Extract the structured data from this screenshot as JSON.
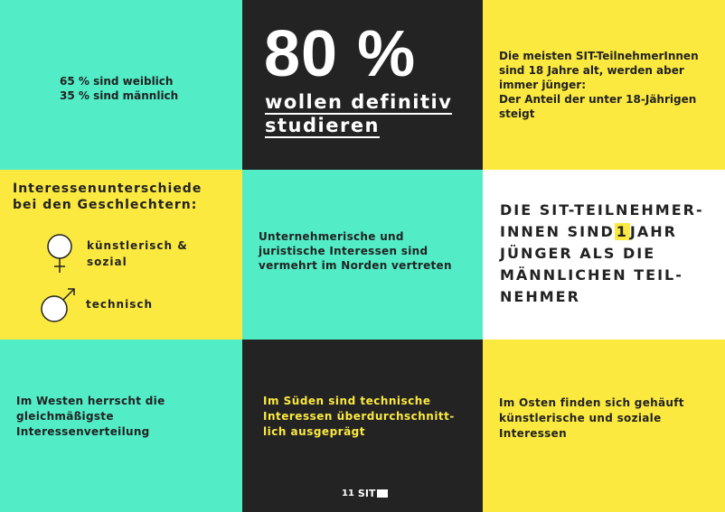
{
  "gender_stats": {
    "female": "65 %  sind weiblich",
    "male": "35 % sind männlich"
  },
  "study": {
    "percent": "80 %",
    "line1": "wollen definitiv",
    "line2": "studieren"
  },
  "age_trend": {
    "text": "Die meisten SIT-TeilnehmerInnen sind 18 Jahre alt, werden aber immer jünger:",
    "text2": "Der Anteil der unter 18-Jährigen steigt"
  },
  "interest_diff": {
    "title": "Interessenunterschiede bei den Geschlechtern:",
    "female_label": "künstlerisch & sozial",
    "male_label": "technisch"
  },
  "north": {
    "text": "Unternehmerische und juristische Interessen sind vermehrt im Norden vertreten"
  },
  "age_gap": {
    "before": "DIE SIT-TEILNEHMER-INNEN SIND",
    "number": "1",
    "after": "JAHR JÜNGER ALS DIE MÄNNLICHEN TEIL-NEHMER"
  },
  "west": {
    "text": "Im Westen herrscht die gleichmäßigste Interessenverteilung"
  },
  "south": {
    "text": "Im Süden sind technische Interessen überdurchschnitt-lich ausgeprägt"
  },
  "east": {
    "text": "Im Osten finden sich gehäuft künstlerische und soziale Interessen"
  },
  "footer": {
    "page_number": "11",
    "logo": "SIT"
  },
  "colors": {
    "mint": "#52ecc6",
    "yellow": "#fbe940",
    "black": "#232323",
    "white": "#ffffff"
  },
  "icons": {
    "female": "female-symbol-icon",
    "male": "male-symbol-icon",
    "logo": "speech-bubble-icon"
  }
}
